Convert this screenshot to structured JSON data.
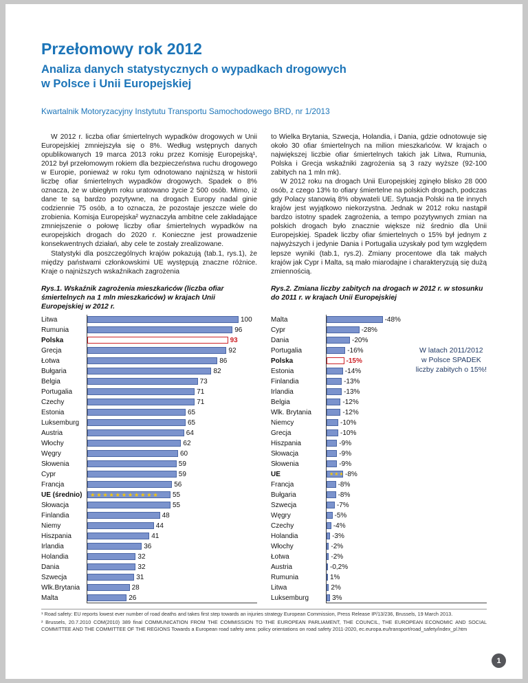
{
  "page": {
    "number": "1"
  },
  "header": {
    "title": "Przełomowy rok 2012",
    "subtitle_line1": "Analiza danych statystycznych o wypadkach drogowych",
    "subtitle_line2": "w Polsce i Unii Europejskiej",
    "source": "Kwartalnik Motoryzacyjny Instytutu Transportu Samochodowego BRD, nr 1/2013"
  },
  "body": {
    "left_p1": "W 2012 r. liczba ofiar śmiertelnych wypadków drogowych w Unii Europejskiej zmniejszyła się o 8%. Według wstępnych danych opublikowanych 19 marca 2013 roku przez Komisję Europejską¹, 2012 był przełomowym rokiem dla bezpieczeństwa ruchu drogowego w Europie, ponieważ w roku tym odnotowano najniższą w historii liczbę ofiar śmiertelnych wypadków drogowych. Spadek o 8% oznacza, że w ubiegłym roku uratowano życie 2 500 osób. Mimo, iż dane te są bardzo pozytywne, na drogach Europy nadal ginie codziennie 75 osób, a to oznacza, że pozostaje jeszcze wiele do zrobienia. Komisja Europejska² wyznaczyła ambitne cele zakładające zmniejszenie o połowę liczby ofiar śmiertelnych wypadków na europejskich drogach do 2020 r. Konieczne jest prowadzenie konsekwentnych działań, aby cele te zostały zrealizowane.",
    "left_p2": "Statystyki dla poszczególnych krajów pokazują (tab.1, rys.1), że między państwami członkowskimi UE występują znaczne różnice. Kraje o najniższych wskaźnikach zagrożenia",
    "right_p1": "to Wielka Brytania, Szwecja, Holandia, i Dania, gdzie odnotowuje się około 30 ofiar śmiertelnych na milion mieszkańców. W krajach o największej liczbie ofiar śmiertelnych takich jak Litwa, Rumunia, Polska i Grecja wskaźniki zagrożenia są 3 razy wyższe (92-100 zabitych na 1 mln mk).",
    "right_p2": "W 2012 roku na drogach Unii Europejskiej zginęło blisko 28 000 osób, z czego 13% to ofiary śmiertelne na polskich drogach, podczas gdy Polacy stanowią 8% obywateli UE. Sytuacja Polski na tle innych krajów jest wyjątkowo niekorzystna. Jednak w 2012 roku nastąpił bardzo istotny spadek zagrożenia, a tempo pozytywnych zmian na polskich drogach było znacznie większe niż średnio dla Unii Europejskiej. Spadek liczby ofiar śmiertelnych o 15% był jednym z najwyższych i jedynie Dania i Portugalia uzyskały pod tym względem lepsze wyniki (tab.1, rys.2). Zmiany procentowe dla tak małych krajów jak Cypr i Malta, są mało miarodajne i charakteryzują się dużą zmiennością."
  },
  "chart_data": [
    {
      "type": "bar",
      "orientation": "horizontal",
      "title": "Rys.1. Wskaźnik zagrożenia mieszkańców (liczba ofiar śmiertelnych na 1 mln mieszkańców) w krajach Unii Europejskiej w 2012 r.",
      "categories": [
        "Litwa",
        "Rumunia",
        "Polska",
        "Grecja",
        "Łotwa",
        "Bułgaria",
        "Belgia",
        "Portugalia",
        "Czechy",
        "Estonia",
        "Luksemburg",
        "Austria",
        "Włochy",
        "Węgry",
        "Słowenia",
        "Cypr",
        "Francja",
        "UE (średnio)",
        "Słowacja",
        "Finlandia",
        "Niemy",
        "Hiszpania",
        "Irlandia",
        "Holandia",
        "Dania",
        "Szwecja",
        "Wlk.Brytania",
        "Malta"
      ],
      "values": [
        100,
        96,
        93,
        92,
        86,
        82,
        73,
        71,
        71,
        65,
        65,
        64,
        62,
        60,
        59,
        59,
        56,
        55,
        55,
        48,
        44,
        41,
        36,
        32,
        32,
        31,
        28,
        26
      ],
      "xlim": [
        0,
        100
      ],
      "xlabel": "",
      "ylabel": "",
      "highlight_category": "Polska",
      "eu_category": "UE (średnio)",
      "eu_stars": 11,
      "bar_color": "#7b93cd",
      "highlight_color": "#cc2127",
      "star_color": "#f2c40f"
    },
    {
      "type": "bar",
      "orientation": "horizontal",
      "title": "Rys.2. Zmiana liczby zabitych na drogach w 2012 r. w stosunku do 2011 r. w krajach Unii Europejskiej",
      "categories": [
        "Malta",
        "Cypr",
        "Dania",
        "Portugalia",
        "Polska",
        "Estonia",
        "Finlandia",
        "Irlandia",
        "Belgia",
        "Wlk. Brytania",
        "Niemcy",
        "Grecja",
        "Hiszpania",
        "Słowacja",
        "Słowenia",
        "UE",
        "Francja",
        "Bułgaria",
        "Szwecja",
        "Węgry",
        "Czechy",
        "Holandia",
        "Włochy",
        "Łotwa",
        "Austria",
        "Rumunia",
        "Litwa",
        "Luksemburg"
      ],
      "values": [
        -48,
        -28,
        -20,
        -16,
        -15,
        -14,
        -13,
        -13,
        -12,
        -12,
        -10,
        -10,
        -9,
        -9,
        -9,
        -8,
        -8,
        -8,
        -7,
        -5,
        -4,
        -3,
        -2,
        -2,
        -0.2,
        1,
        2,
        3
      ],
      "value_labels": [
        "-48%",
        "-28%",
        "-20%",
        "-16%",
        "-15%",
        "-14%",
        "-13%",
        "-13%",
        "-12%",
        "-12%",
        "-10%",
        "-10%",
        "-9%",
        "-9%",
        "-9%",
        "-8%",
        "-8%",
        "-8%",
        "-7%",
        "-5%",
        "-4%",
        "-3%",
        "-2%",
        "-2%",
        "-0,2%",
        "1%",
        "2%",
        "3%"
      ],
      "xlim": [
        -48,
        3
      ],
      "xlabel": "",
      "ylabel": "",
      "annotation": [
        "W latach 2011/2012",
        "w Polsce SPADEK",
        "liczby zabitych o 15%!"
      ],
      "highlight_category": "Polska",
      "eu_category": "UE",
      "eu_stars": 3,
      "bar_color": "#7b93cd",
      "highlight_color": "#cc2127",
      "star_color": "#f2c40f"
    }
  ],
  "footnotes": {
    "note1": "¹  Road safety: EU reports lowest ever number of road deaths and takes first step towards an injuries strategy European Commission, Press Release IP/13/236, Brussels, 19 March 2013.",
    "note2": "²  Brussels, 20.7.2010 COM(2010) 389 final COMMUNICATION FROM THE COMMISSION TO THE EUROPEAN PARLIAMENT, THE COUNCIL, THE EUROPEAN ECONOMIC AND SOCIAL COMMITTEE AND THE COMMITTEE OF THE REGIONS Towards a European road safety area: policy orientations on road safety 2011-2020, ec.europa.eu/transport/road_safety/index_pl.htm"
  },
  "colors": {
    "accent_blue": "#1b74b8",
    "bar_fill": "#7b93cd",
    "bar_border": "#4a66a5",
    "highlight_red": "#cc2127",
    "star_gold": "#f2c40f"
  }
}
